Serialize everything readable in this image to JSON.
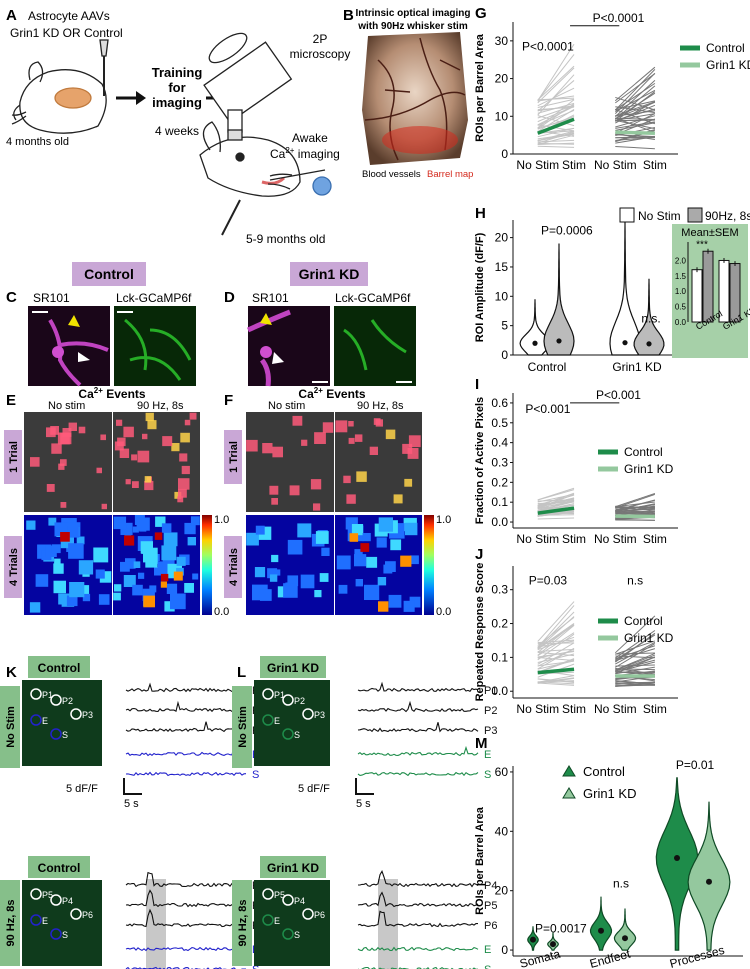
{
  "panels": {
    "A": {
      "letter": "A",
      "title_line1": "Astrocyte AAVs",
      "title_line2": "Grin1 KD OR Control",
      "training_line1": "Training",
      "training_line2": "for",
      "training_line3": "imaging",
      "duration": "4 weeks",
      "age_start": "4 months old",
      "microscope_line1": "2P",
      "microscope_line2": "microscopy",
      "awake_line1": "Awake",
      "awake_line2": "Ca",
      "awake_sup": "2+",
      "awake_line2b": " imaging",
      "age_end": "5-9 months old"
    },
    "B": {
      "letter": "B",
      "title_line1": "Intrinsic optical imaging",
      "title_line2": "with 90Hz whisker stim",
      "legend_vessels": "Blood vessels",
      "legend_barrel": "Barrel map"
    },
    "C": {
      "letter": "C",
      "header": "Control",
      "label_sr101": "SR101",
      "label_gcamp": "Lck-GCaMP6f"
    },
    "D": {
      "letter": "D",
      "header": "Grin1 KD",
      "label_sr101": "SR101",
      "label_gcamp": "Lck-GCaMP6f"
    },
    "E": {
      "letter": "E",
      "events_title": "Ca",
      "events_sup": "2+",
      "events_title_b": " Events",
      "col_nostim": "No stim",
      "col_stim": "90 Hz, 8s",
      "row_1trial": "1 Trial",
      "row_4trials": "4 Trials",
      "cbar_max": "1.0",
      "cbar_min": "0.0"
    },
    "F": {
      "letter": "F",
      "events_title": "Ca",
      "events_sup": "2+",
      "events_title_b": " Events",
      "col_nostim": "No stim",
      "col_stim": "90 Hz, 8s",
      "row_1trial": "1 Trial",
      "row_4trials": "4 Trials",
      "cbar_max": "1.0",
      "cbar_min": "0.0"
    },
    "G": {
      "letter": "G"
    },
    "H": {
      "letter": "H"
    },
    "I": {
      "letter": "I"
    },
    "J": {
      "letter": "J"
    },
    "K": {
      "letter": "K",
      "header_top": "Control",
      "header_bottom": "Control",
      "side_top": "No Stim",
      "side_bottom": "90 Hz, 8s",
      "rois_top": [
        "P1",
        "P2",
        "P3",
        "E",
        "S"
      ],
      "rois_bottom": [
        "P5",
        "P4",
        "P6",
        "E",
        "S"
      ],
      "traces_top": [
        "P1",
        "P2",
        "P3",
        "E",
        "S"
      ],
      "traces_bottom": [
        "P4",
        "P5",
        "P6",
        "E",
        "S"
      ],
      "scale_y": "5 dF/F",
      "scale_x": "5 s",
      "stim_label": "Stim",
      "trace_color_black": "#111111",
      "trace_color_special": "#2222cc"
    },
    "L": {
      "letter": "L",
      "header_top": "Grin1 KD",
      "header_bottom": "Grin1 KD",
      "side_top": "No Stim",
      "side_bottom": "90 Hz, 8s",
      "rois_top": [
        "P1",
        "P2",
        "P3",
        "E",
        "S"
      ],
      "rois_bottom": [
        "P5",
        "P4",
        "P6",
        "E",
        "S"
      ],
      "traces_top": [
        "P1",
        "P2",
        "P3",
        "E",
        "S"
      ],
      "traces_bottom": [
        "P4",
        "P5",
        "P6",
        "E",
        "S"
      ],
      "scale_y": "5 dF/F",
      "scale_x": "5 s",
      "stim_label": "Stim",
      "trace_color_black": "#111111",
      "trace_color_special": "#1e8c4a"
    },
    "M": {
      "letter": "M"
    }
  },
  "colors": {
    "control": "#1e8c4a",
    "grin1kd": "#94c89e",
    "label_bg": "#c9a7d6",
    "label_bg_green": "#86bf8a",
    "inset_bg": "#a6d0a8",
    "barrel_red": "#d42a1e"
  },
  "chart_data": [
    {
      "id": "G",
      "type": "line",
      "ylabel": "ROIs per Barrel Area",
      "xlabel": "",
      "categories": [
        "No Stim",
        "Stim",
        "No Stim",
        "Stim"
      ],
      "ylim": [
        0,
        35
      ],
      "yticks": [
        0,
        10,
        20,
        30
      ],
      "annotations": [
        "P<0.0001",
        "P<0.0001"
      ],
      "series": [
        {
          "name": "Control",
          "x": [
            "No Stim",
            "Stim"
          ],
          "values": [
            5.5,
            9.2
          ]
        },
        {
          "name": "Grin1 KD",
          "x": [
            "No Stim",
            "Stim"
          ],
          "values": [
            5.8,
            5.5
          ]
        }
      ]
    },
    {
      "id": "H",
      "type": "violin",
      "ylabel": "ROI Amplitude (dF/F)",
      "categories": [
        "Control",
        "Grin1 KD"
      ],
      "ylim": [
        0,
        23
      ],
      "yticks": [
        0,
        5,
        10,
        15,
        20
      ],
      "legend": [
        "No Stim",
        "90Hz, 8s"
      ],
      "annotations": [
        "P=0.0006",
        "n.s."
      ],
      "series": [
        {
          "name": "No Stim",
          "values": [
            2.0,
            2.1
          ]
        },
        {
          "name": "90Hz, 8s",
          "values": [
            2.4,
            1.9
          ]
        }
      ],
      "inset": {
        "title": "Mean±SEM",
        "type": "bar",
        "categories": [
          "Control",
          "Grin1 KD"
        ],
        "ylim": [
          0,
          2.6
        ],
        "yticks": [
          0.0,
          0.5,
          1.0,
          1.5,
          2.0
        ],
        "annotation": "***",
        "series": [
          {
            "name": "No Stim",
            "values": [
              1.7,
              2.0
            ]
          },
          {
            "name": "90Hz, 8s",
            "values": [
              2.3,
              1.9
            ]
          }
        ]
      }
    },
    {
      "id": "I",
      "type": "line",
      "ylabel": "Fraction of Active Pixels",
      "categories": [
        "No Stim",
        "Stim",
        "No Stim",
        "Stim"
      ],
      "ylim": [
        -0.03,
        0.65
      ],
      "yticks": [
        0.0,
        0.1,
        0.2,
        0.3,
        0.4,
        0.5,
        0.6
      ],
      "annotations": [
        "P<0.001",
        "P<0.001"
      ],
      "series": [
        {
          "name": "Control",
          "x": [
            "No Stim",
            "Stim"
          ],
          "values": [
            0.045,
            0.07
          ]
        },
        {
          "name": "Grin1 KD",
          "x": [
            "No Stim",
            "Stim"
          ],
          "values": [
            0.03,
            0.028
          ]
        }
      ]
    },
    {
      "id": "J",
      "type": "line",
      "ylabel": "Repeated Response Score",
      "categories": [
        "No Stim",
        "Stim",
        "No Stim",
        "Stim"
      ],
      "ylim": [
        -0.02,
        0.37
      ],
      "yticks": [
        0.0,
        0.1,
        0.2,
        0.3
      ],
      "annotations": [
        "P=0.03",
        "n.s"
      ],
      "series": [
        {
          "name": "Control",
          "x": [
            "No Stim",
            "Stim"
          ],
          "values": [
            0.055,
            0.065
          ]
        },
        {
          "name": "Grin1 KD",
          "x": [
            "No Stim",
            "Stim"
          ],
          "values": [
            0.045,
            0.045
          ]
        }
      ]
    },
    {
      "id": "M",
      "type": "violin",
      "ylabel": "ROIs per Barrel Area",
      "categories": [
        "Somata",
        "Endfeet",
        "Processes"
      ],
      "ylim": [
        -2,
        62
      ],
      "yticks": [
        0,
        20,
        40,
        60
      ],
      "annotations": [
        "P=0.0017",
        "n.s",
        "P=0.01"
      ],
      "series": [
        {
          "name": "Control",
          "values": [
            3.5,
            6.5,
            31
          ]
        },
        {
          "name": "Grin1 KD",
          "values": [
            2.0,
            4.0,
            23
          ]
        }
      ]
    }
  ]
}
